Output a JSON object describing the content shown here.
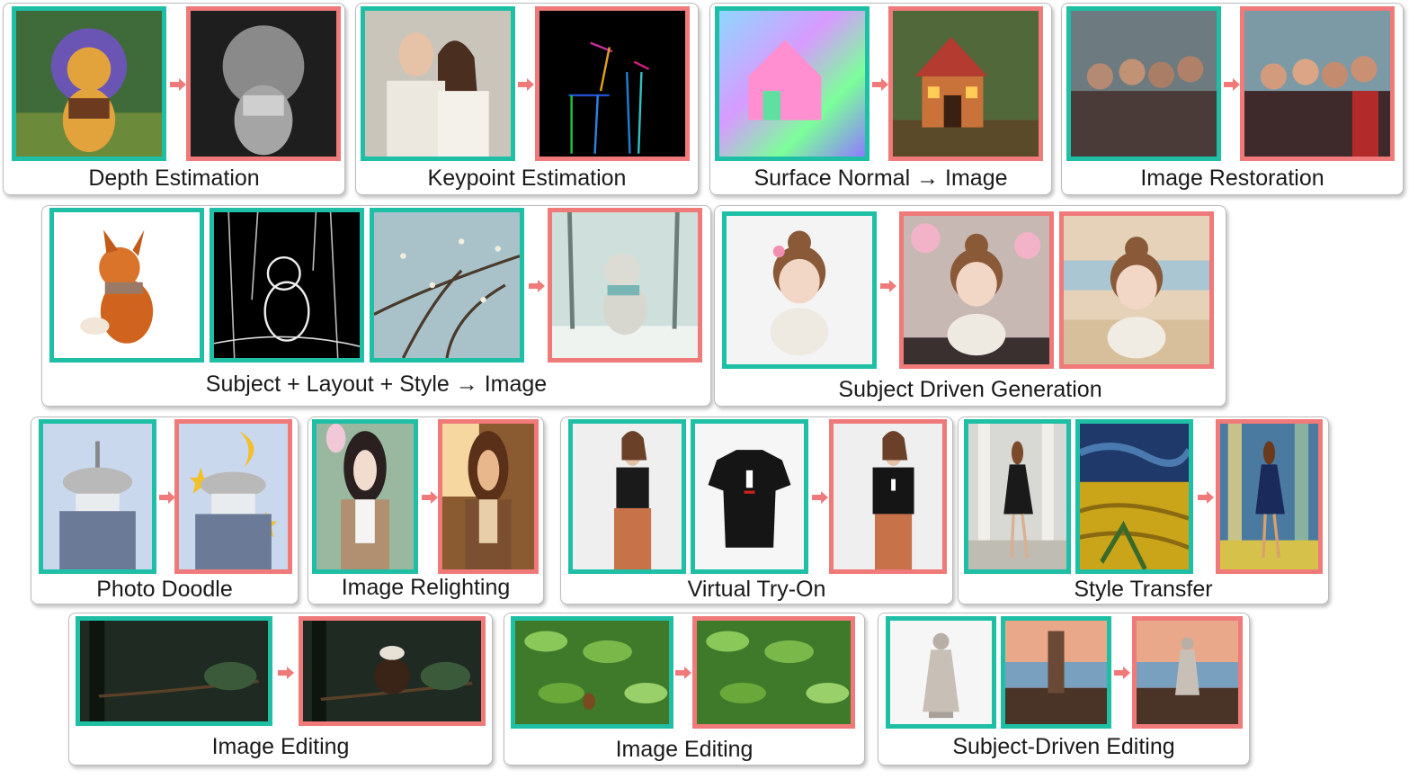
{
  "panels": {
    "depth": "Depth Estimation",
    "keypoint": "Keypoint Estimation",
    "normal": "Surface Normal → Image",
    "restoration": "Image Restoration",
    "multi": "Subject + Layout + Style → Image",
    "subject_gen": "Subject Driven Generation",
    "doodle": "Photo Doodle",
    "relight": "Image Relighting",
    "tryon": "Virtual Try-On",
    "style": "Style Transfer",
    "edit1": "Image Editing",
    "edit2": "Image Editing",
    "subject_edit": "Subject-Driven Editing"
  },
  "colors": {
    "input_border": "#1fbfa6",
    "output_border": "#ef7a79",
    "arrow": "#ef7a79"
  }
}
